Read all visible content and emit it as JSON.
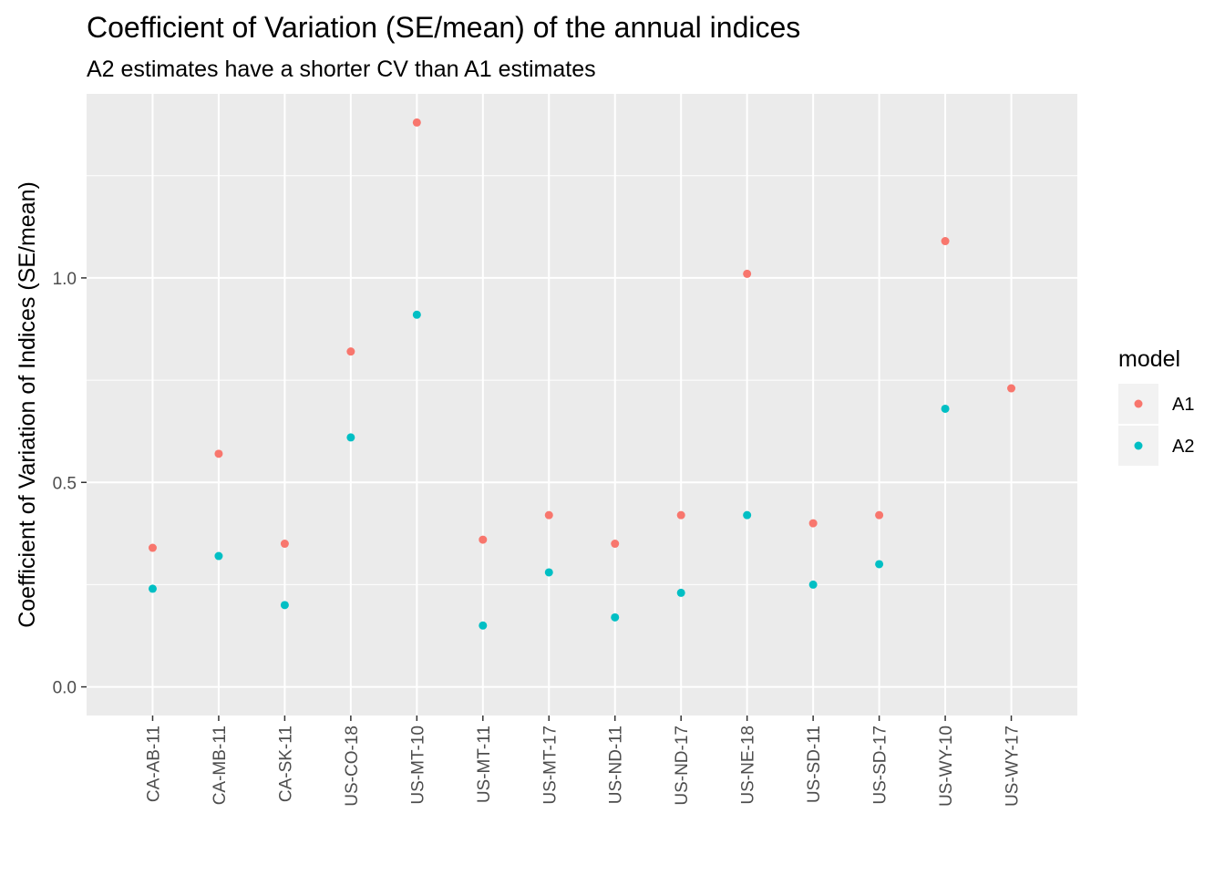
{
  "chart_data": {
    "type": "scatter",
    "title": "Coefficient of Variation (SE/mean) of the annual indices",
    "subtitle": "A2 estimates have a shorter CV than A1 estimates",
    "xlabel": "",
    "ylabel": "Coefficient of Variation of Indices (SE/mean)",
    "categories": [
      "CA-AB-11",
      "CA-MB-11",
      "CA-SK-11",
      "US-CO-18",
      "US-MT-10",
      "US-MT-11",
      "US-MT-17",
      "US-ND-11",
      "US-ND-17",
      "US-NE-18",
      "US-SD-11",
      "US-SD-17",
      "US-WY-10",
      "US-WY-17"
    ],
    "series": [
      {
        "name": "A1",
        "color": "#F8766D",
        "values": [
          0.34,
          0.57,
          0.35,
          0.82,
          1.38,
          0.36,
          0.42,
          0.35,
          0.42,
          1.01,
          0.4,
          0.42,
          1.09,
          0.73
        ]
      },
      {
        "name": "A2",
        "color": "#00BFC4",
        "values": [
          0.24,
          0.32,
          0.2,
          0.61,
          0.91,
          0.15,
          0.28,
          0.17,
          0.23,
          0.42,
          0.25,
          0.3,
          0.68,
          null
        ]
      }
    ],
    "ylim": [
      -0.07,
      1.45
    ],
    "yticks": [
      0.0,
      0.5,
      1.0
    ],
    "ytick_labels": [
      "0.0",
      "0.5",
      "1.0"
    ],
    "grid": true,
    "legend": {
      "title": "model",
      "position": "right"
    },
    "panel_background": "#EBEBEB"
  }
}
